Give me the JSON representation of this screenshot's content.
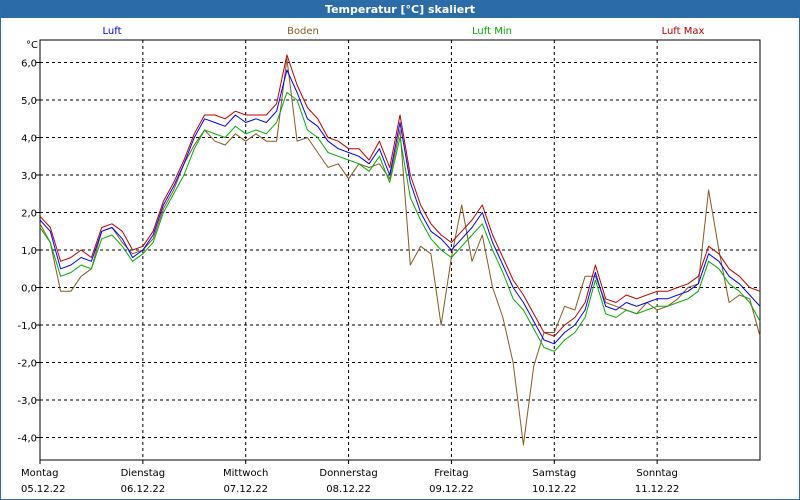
{
  "window": {
    "title": "Temperatur [°C] skaliert"
  },
  "chart_data": {
    "type": "line",
    "title": "Temperatur [°C] skaliert",
    "ylabel": "°C",
    "xlabel": "",
    "ylim": [
      -4.6,
      6.6
    ],
    "xlim": [
      0,
      7
    ],
    "grid": true,
    "legend_position": "top",
    "y_ticks": [
      {
        "value": 6,
        "label": "6,0"
      },
      {
        "value": 5,
        "label": "5,0"
      },
      {
        "value": 4,
        "label": "4,0"
      },
      {
        "value": 3,
        "label": "3,0"
      },
      {
        "value": 2,
        "label": "2,0"
      },
      {
        "value": 1,
        "label": "1,0"
      },
      {
        "value": 0,
        "label": "0,0"
      },
      {
        "value": -1,
        "label": "-1,0"
      },
      {
        "value": -2,
        "label": "-2,0"
      },
      {
        "value": -3,
        "label": "-3,0"
      },
      {
        "value": -4,
        "label": "-4,0"
      }
    ],
    "x_ticks": [
      {
        "value": 0,
        "day": "Montag",
        "date": "05.12.22"
      },
      {
        "value": 1,
        "day": "Dienstag",
        "date": "06.12.22"
      },
      {
        "value": 2,
        "day": "Mittwoch",
        "date": "07.12.22"
      },
      {
        "value": 3,
        "day": "Donnerstag",
        "date": "08.12.22"
      },
      {
        "value": 4,
        "day": "Freitag",
        "date": "09.12.22"
      },
      {
        "value": 5,
        "day": "Samstag",
        "date": "10.12.22"
      },
      {
        "value": 6,
        "day": "Sonntag",
        "date": "11.12.22"
      }
    ],
    "x": [
      0,
      0.1,
      0.2,
      0.3,
      0.4,
      0.5,
      0.6,
      0.7,
      0.8,
      0.9,
      1,
      1.1,
      1.2,
      1.3,
      1.4,
      1.5,
      1.6,
      1.7,
      1.8,
      1.9,
      2,
      2.1,
      2.2,
      2.3,
      2.4,
      2.5,
      2.6,
      2.7,
      2.8,
      2.9,
      3,
      3.1,
      3.2,
      3.3,
      3.4,
      3.5,
      3.6,
      3.7,
      3.8,
      3.9,
      4,
      4.1,
      4.2,
      4.3,
      4.4,
      4.5,
      4.6,
      4.7,
      4.8,
      4.9,
      5,
      5.1,
      5.2,
      5.3,
      5.4,
      5.5,
      5.6,
      5.7,
      5.8,
      5.9,
      6,
      6.1,
      6.2,
      6.3,
      6.4,
      6.5,
      6.6,
      6.7,
      6.8,
      6.9,
      7
    ],
    "series": [
      {
        "name": "Luft",
        "color": "#0000ff",
        "values": [
          1.8,
          1.5,
          0.5,
          0.6,
          0.8,
          0.7,
          1.5,
          1.6,
          1.3,
          0.8,
          1.0,
          1.4,
          2.2,
          2.7,
          3.3,
          4.0,
          4.5,
          4.4,
          4.3,
          4.6,
          4.4,
          4.5,
          4.4,
          4.7,
          5.8,
          5.2,
          4.5,
          4.3,
          3.9,
          3.7,
          3.6,
          3.5,
          3.3,
          3.7,
          3.0,
          4.4,
          2.8,
          2.0,
          1.5,
          1.3,
          1.0,
          1.3,
          1.6,
          2.0,
          1.2,
          0.6,
          0.0,
          -0.4,
          -0.9,
          -1.4,
          -1.5,
          -1.2,
          -1.0,
          -0.6,
          0.4,
          -0.5,
          -0.6,
          -0.4,
          -0.5,
          -0.4,
          -0.3,
          -0.3,
          -0.2,
          -0.1,
          0.1,
          0.9,
          0.7,
          0.3,
          0.1,
          -0.2,
          -0.5
        ]
      },
      {
        "name": "Boden",
        "color": "#8b5a1e",
        "values": [
          1.7,
          1.2,
          -0.1,
          -0.1,
          0.3,
          0.5,
          1.5,
          1.6,
          1.2,
          0.9,
          1.0,
          1.3,
          2.1,
          2.6,
          3.3,
          3.8,
          4.2,
          3.9,
          3.8,
          4.1,
          3.9,
          4.1,
          3.9,
          3.9,
          6.1,
          3.9,
          4.0,
          3.6,
          3.2,
          3.3,
          2.9,
          3.3,
          3.2,
          3.3,
          2.9,
          4.2,
          0.6,
          1.1,
          0.9,
          -1.0,
          0.8,
          2.2,
          0.7,
          1.4,
          0.0,
          -0.8,
          -2.0,
          -4.2,
          -2.1,
          -1.2,
          -1.2,
          -0.5,
          -0.6,
          0.3,
          0.3,
          -0.4,
          -0.5,
          -0.6,
          -0.7,
          -0.4,
          -0.6,
          -0.5,
          -0.3,
          0.0,
          0.1,
          2.6,
          1.0,
          -0.4,
          -0.2,
          -0.3,
          -1.3
        ]
      },
      {
        "name": "Luft Min",
        "color": "#00b000",
        "values": [
          1.6,
          1.2,
          0.3,
          0.4,
          0.6,
          0.5,
          1.3,
          1.4,
          1.1,
          0.7,
          0.9,
          1.2,
          2.0,
          2.5,
          3.0,
          3.7,
          4.2,
          4.1,
          4.0,
          4.3,
          4.1,
          4.2,
          4.1,
          4.4,
          5.2,
          5.0,
          4.2,
          4.0,
          3.6,
          3.5,
          3.4,
          3.3,
          3.1,
          3.5,
          2.8,
          4.0,
          2.4,
          1.8,
          1.3,
          1.0,
          0.8,
          1.1,
          1.4,
          1.7,
          1.0,
          0.4,
          -0.3,
          -0.6,
          -1.1,
          -1.6,
          -1.7,
          -1.4,
          -1.2,
          -0.8,
          0.2,
          -0.7,
          -0.8,
          -0.6,
          -0.7,
          -0.6,
          -0.5,
          -0.5,
          -0.4,
          -0.3,
          -0.1,
          0.7,
          0.5,
          0.1,
          -0.1,
          -0.4,
          -0.9
        ]
      },
      {
        "name": "Luft Max",
        "color": "#c00000",
        "values": [
          1.9,
          1.6,
          0.7,
          0.8,
          1.0,
          0.8,
          1.6,
          1.7,
          1.5,
          1.0,
          1.1,
          1.5,
          2.3,
          2.8,
          3.4,
          4.1,
          4.6,
          4.6,
          4.5,
          4.7,
          4.6,
          4.6,
          4.6,
          4.9,
          6.2,
          5.4,
          4.8,
          4.5,
          4.0,
          3.9,
          3.7,
          3.7,
          3.4,
          3.9,
          3.2,
          4.6,
          3.0,
          2.2,
          1.7,
          1.4,
          1.2,
          1.5,
          1.8,
          2.2,
          1.4,
          0.8,
          0.2,
          -0.2,
          -0.7,
          -1.2,
          -1.3,
          -1.0,
          -0.8,
          -0.4,
          0.6,
          -0.3,
          -0.4,
          -0.2,
          -0.3,
          -0.2,
          -0.1,
          -0.1,
          0.0,
          0.1,
          0.3,
          1.1,
          0.9,
          0.5,
          0.3,
          0.0,
          -0.1
        ]
      }
    ]
  }
}
